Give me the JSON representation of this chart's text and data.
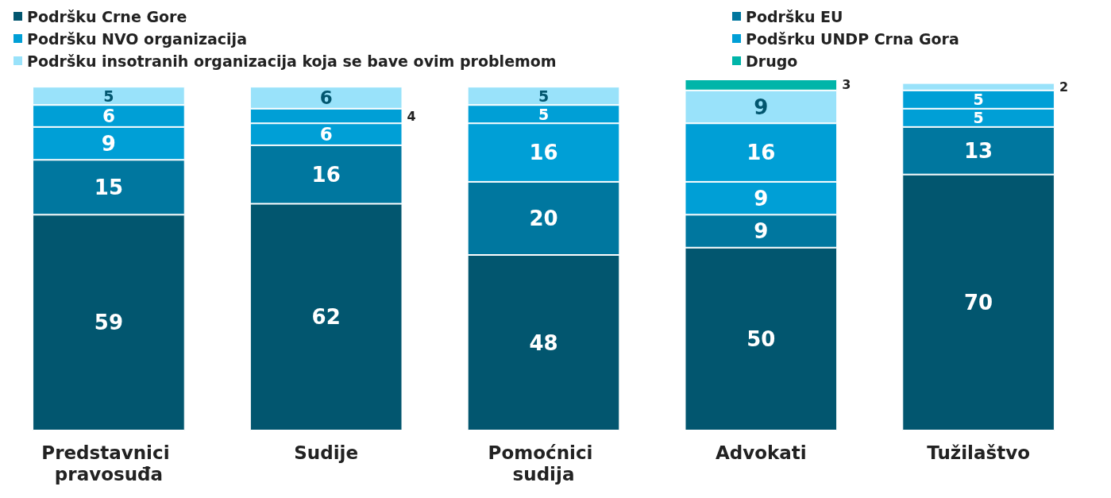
{
  "chart_data": {
    "type": "bar",
    "stacked": true,
    "data_labels": true,
    "legend": "top",
    "tick_labels": "x",
    "categories": [
      "Predstavnici pravosuđa",
      "Sudije",
      "Pomoćnici sudija",
      "Advokati",
      "Tužilaštvo"
    ],
    "series": [
      {
        "name": "Podršku Crne Gore",
        "color": "#02566f",
        "values": [
          59,
          62,
          48,
          50,
          70
        ]
      },
      {
        "name": "Podršku EU",
        "color": "#00779f",
        "values": [
          15,
          16,
          20,
          9,
          13
        ]
      },
      {
        "name": "Podršku NVO organizacija",
        "color": "#009fd6",
        "values": [
          9,
          6,
          16,
          9,
          5
        ]
      },
      {
        "name": "Podšrku UNDP Crna Gora",
        "color": "#009fd6",
        "values": [
          6,
          4,
          5,
          16,
          5
        ]
      },
      {
        "name": "Podršku insotranih organizacija koja se bave ovim problemom",
        "color": "#99e2fa",
        "values": [
          5,
          6,
          5,
          9,
          2
        ]
      },
      {
        "name": "Drugo",
        "color": "#00b5a9",
        "values": [
          null,
          null,
          null,
          3,
          null
        ]
      }
    ]
  }
}
